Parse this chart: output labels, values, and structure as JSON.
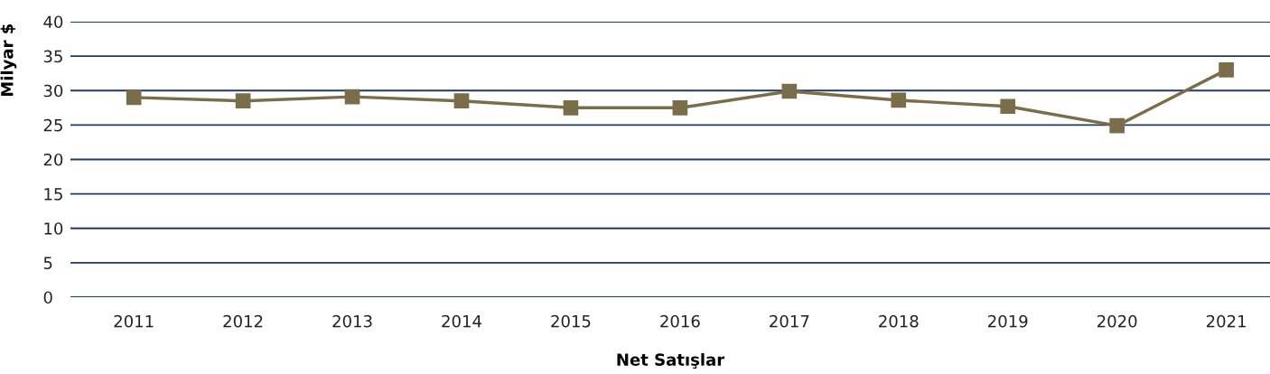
{
  "chart_data": {
    "type": "line",
    "xlabel": "Net Satışlar",
    "ylabel": "Milyar $",
    "categories": [
      "2011",
      "2012",
      "2013",
      "2014",
      "2015",
      "2016",
      "2017",
      "2018",
      "2019",
      "2020",
      "2021"
    ],
    "series": [
      {
        "color": "#7a6e4a",
        "values": [
          29.0,
          28.5,
          29.1,
          28.5,
          27.5,
          27.5,
          29.9,
          28.6,
          27.7,
          24.9,
          33.0
        ]
      }
    ],
    "ylim": [
      0,
      40
    ],
    "yticks": [
      0,
      5,
      10,
      15,
      20,
      25,
      30,
      35,
      40
    ],
    "grid": "y",
    "marker": "square",
    "line_style": "solid"
  }
}
